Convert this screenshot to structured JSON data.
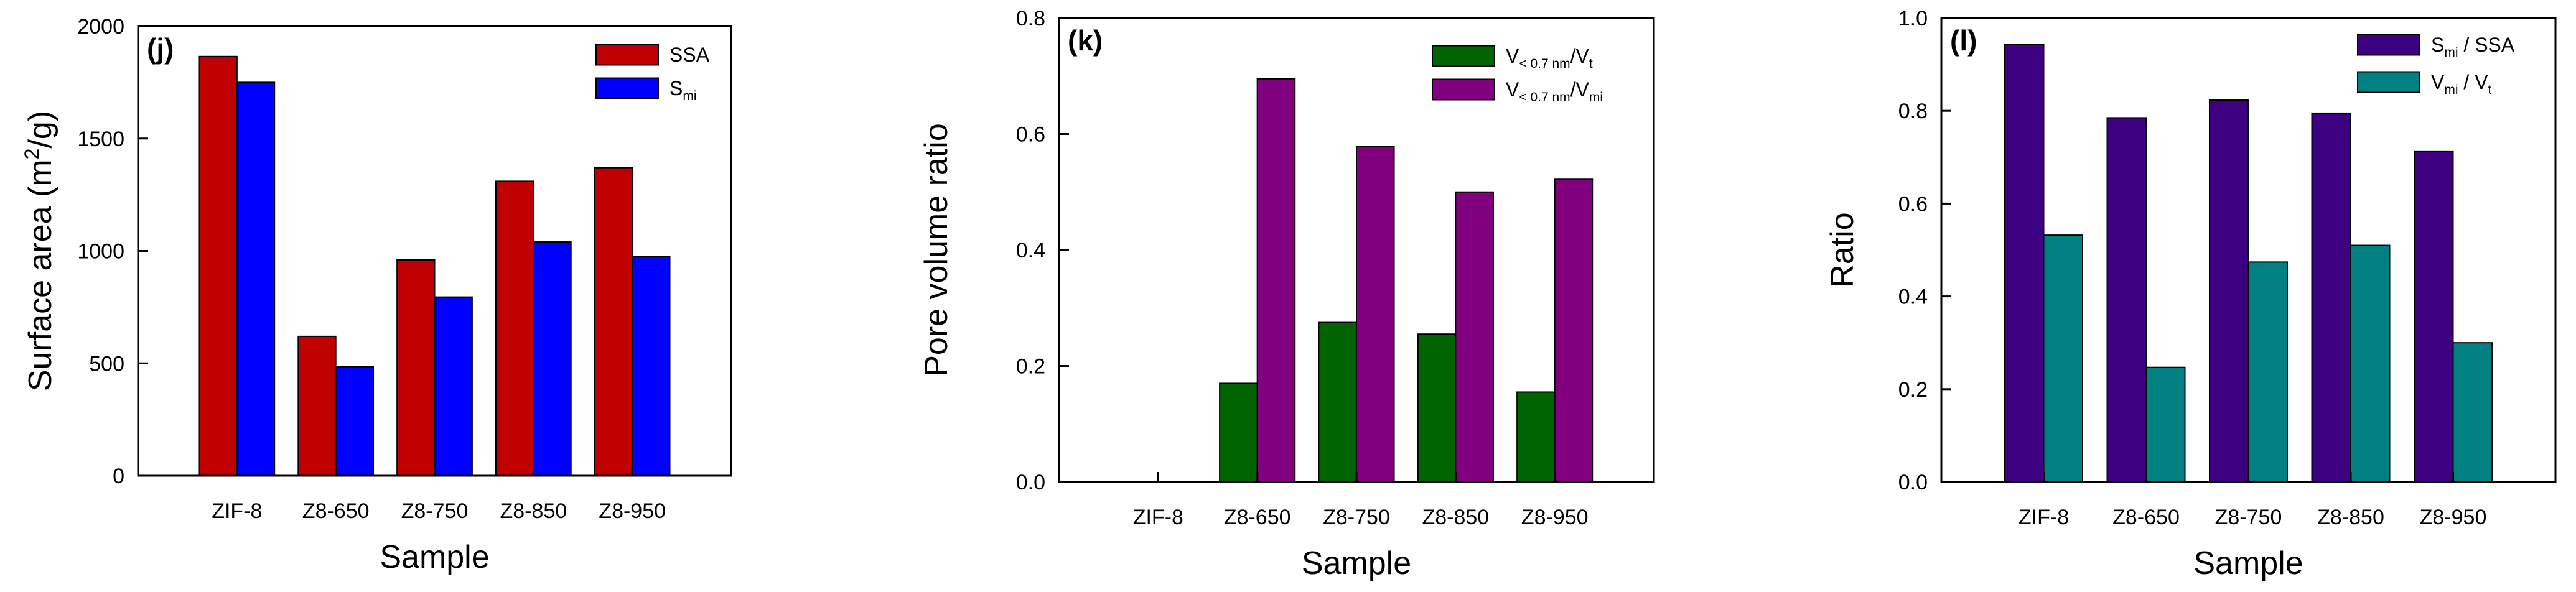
{
  "chart_data": [
    {
      "type": "bar",
      "panel_label": "(j)",
      "title": "",
      "xlabel": "Sample",
      "ylabel": "Surface area (m",
      "ylabel_sup": "2",
      "ylabel_tail": "/g)",
      "categories": [
        "ZIF-8",
        "Z8-650",
        "Z8-750",
        "Z8-850",
        "Z8-950"
      ],
      "ylim": [
        0,
        2000
      ],
      "yticks": [
        0,
        500,
        1000,
        1500,
        2000
      ],
      "ytick_labels": [
        "0",
        "500",
        "1000",
        "1500",
        "2000"
      ],
      "grid": false,
      "legend_position": "top-right",
      "series": [
        {
          "name": "SSA",
          "legend_main": "SSA",
          "legend_sub": "",
          "legend_tail": "",
          "color": "#c00000",
          "values": [
            1865,
            620,
            960,
            1310,
            1370
          ]
        },
        {
          "name": "S_mi",
          "legend_main": "S",
          "legend_sub": "mi",
          "legend_tail": "",
          "color": "#0000ff",
          "values": [
            1750,
            485,
            795,
            1040,
            975
          ]
        }
      ]
    },
    {
      "type": "bar",
      "panel_label": "(k)",
      "title": "",
      "xlabel": "Sample",
      "ylabel": "Pore volume ratio",
      "ylabel_sup": "",
      "ylabel_tail": "",
      "categories": [
        "ZIF-8",
        "Z8-650",
        "Z8-750",
        "Z8-850",
        "Z8-950"
      ],
      "ylim": [
        0,
        0.8
      ],
      "yticks": [
        0,
        0.2,
        0.4,
        0.6,
        0.8
      ],
      "ytick_labels": [
        "0.0",
        "0.2",
        "0.4",
        "0.6",
        "0.8"
      ],
      "grid": false,
      "legend_position": "top-right",
      "series": [
        {
          "name": "V<0.7nm/Vt",
          "legend_main": "V",
          "legend_sub": "< 0.7 nm",
          "legend_tail": "/V",
          "legend_tail_sub": "t",
          "color": "#006400",
          "values": [
            0,
            0.17,
            0.275,
            0.255,
            0.155
          ]
        },
        {
          "name": "V<0.7nm/Vmi",
          "legend_main": "V",
          "legend_sub": "< 0.7 nm",
          "legend_tail": "/V",
          "legend_tail_sub": "mi",
          "color": "#800080",
          "values": [
            0,
            0.695,
            0.578,
            0.5,
            0.522
          ]
        }
      ]
    },
    {
      "type": "bar",
      "panel_label": "(l)",
      "title": "",
      "xlabel": "Sample",
      "ylabel": "Ratio",
      "ylabel_sup": "",
      "ylabel_tail": "",
      "categories": [
        "ZIF-8",
        "Z8-650",
        "Z8-750",
        "Z8-850",
        "Z8-950"
      ],
      "ylim": [
        0,
        1.0
      ],
      "yticks": [
        0,
        0.2,
        0.4,
        0.6,
        0.8,
        1.0
      ],
      "ytick_labels": [
        "0.0",
        "0.2",
        "0.4",
        "0.6",
        "0.8",
        "1.0"
      ],
      "grid": false,
      "legend_position": "top-right",
      "series": [
        {
          "name": "Smi/SSA",
          "legend_main": "S",
          "legend_sub": "mi",
          "legend_tail": " / SSA",
          "legend_tail_sub": "",
          "color": "#3d0080",
          "values": [
            0.943,
            0.785,
            0.823,
            0.795,
            0.712
          ]
        },
        {
          "name": "Vmi/Vt",
          "legend_main": "V",
          "legend_sub": "mi",
          "legend_tail": " / V",
          "legend_tail_sub": "t",
          "color": "#008080",
          "values": [
            0.532,
            0.247,
            0.474,
            0.51,
            0.3
          ]
        }
      ]
    }
  ]
}
